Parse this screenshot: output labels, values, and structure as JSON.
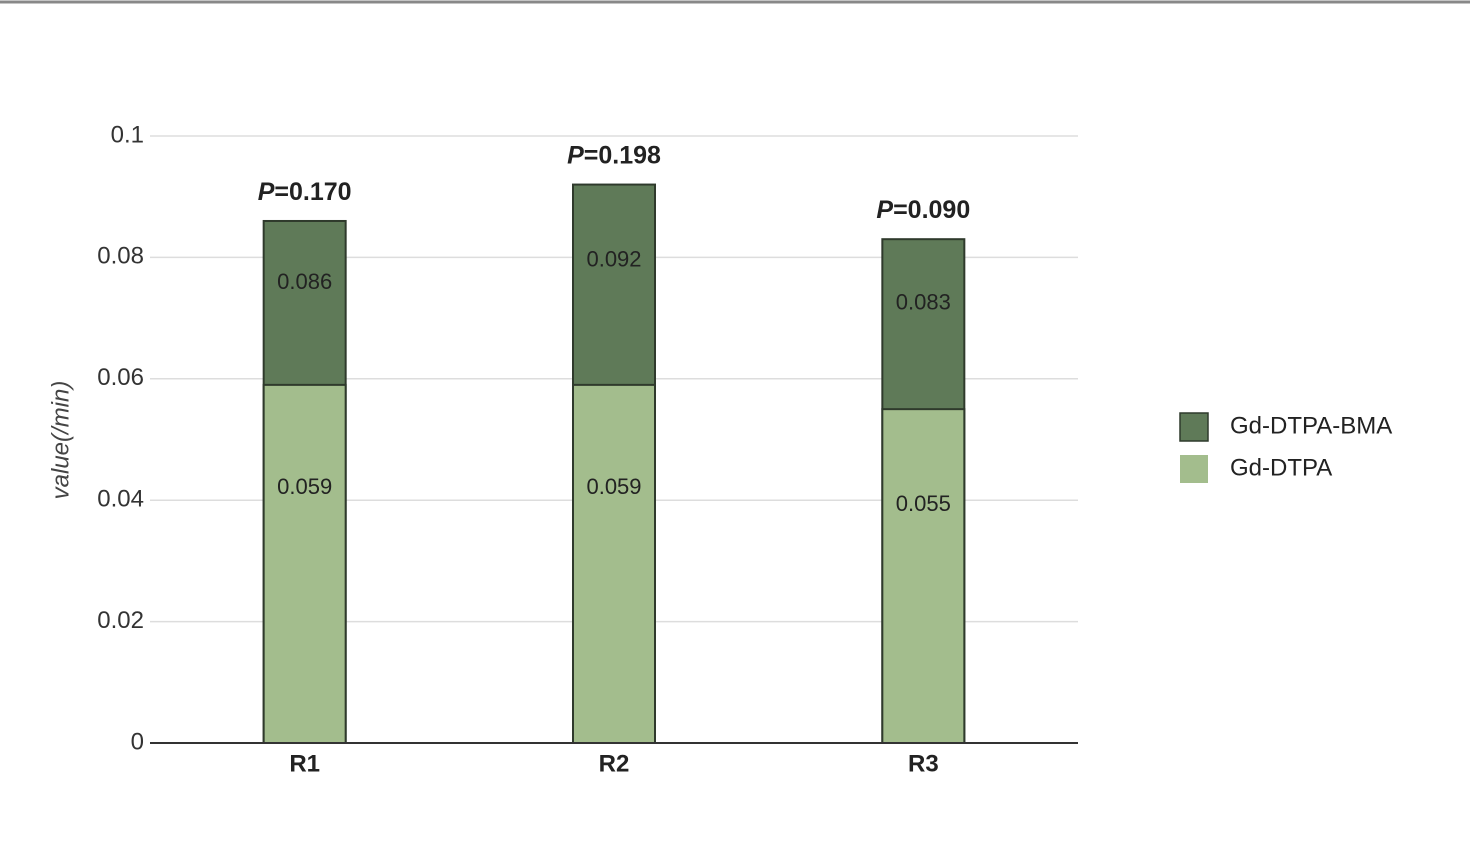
{
  "chart_data": {
    "type": "overlapping_bar",
    "y_label": "value(/min)",
    "categories": [
      "R1",
      "R2",
      "R3"
    ],
    "series": [
      {
        "name": "Gd-DTPA-BMA",
        "color": "#5f7a58",
        "values": [
          0.086,
          0.092,
          0.083
        ]
      },
      {
        "name": "Gd-DTPA",
        "color": "#a3bd8d",
        "values": [
          0.059,
          0.059,
          0.055
        ]
      }
    ],
    "annotations": [
      "P=0.170",
      "P=0.198",
      "P=0.090"
    ],
    "ylim": [
      0,
      0.1
    ],
    "yticks": [
      0,
      0.02,
      0.04,
      0.06,
      0.08,
      0.1
    ],
    "grid": true,
    "legend": "right"
  }
}
